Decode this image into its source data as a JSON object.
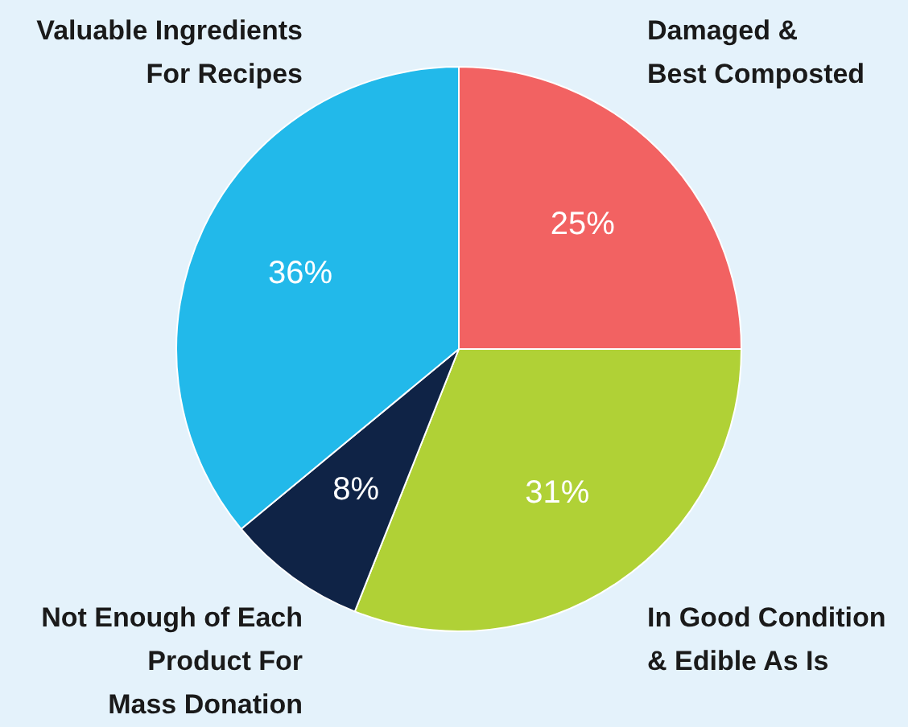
{
  "chart_data": {
    "type": "pie",
    "categories": [
      "Damaged &\nBest Composted",
      "In Good Condition\n& Edible As Is",
      "Not Enough of Each\nProduct For\nMass Donation",
      "Valuable Ingredients\nFor Recipes"
    ],
    "values": [
      25,
      31,
      8,
      36
    ],
    "colors": [
      "#f26262",
      "#b0d136",
      "#0f2346",
      "#22b9ea"
    ],
    "value_labels": [
      "25%",
      "31%",
      "8%",
      "36%"
    ],
    "legend": false
  }
}
